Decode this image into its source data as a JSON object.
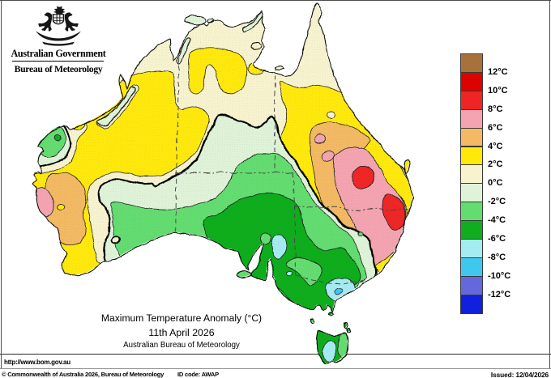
{
  "header": {
    "government": "Australian Government",
    "bureau": "Bureau of Meteorology",
    "logo_icon": "australian-coat-of-arms"
  },
  "title": {
    "line1": "Maximum Temperature Anomaly (°C)",
    "line2": "11th April 2026",
    "line3": "Australian Bureau of Meteorology"
  },
  "url": "http://www.bom.gov.au",
  "footer": {
    "copyright": "© Commonwealth of Australia 2026, Bureau of Meteorology",
    "id_code": "ID code: AWAP",
    "issued": "Issued: 12/04/2026"
  },
  "legend": {
    "labels": [
      "12°C",
      "10°C",
      "8°C",
      "6°C",
      "4°C",
      "2°C",
      "0°C",
      "-2°C",
      "-4°C",
      "-6°C",
      "-8°C",
      "-10°C",
      "-12°C"
    ],
    "colors": [
      "#a9713a",
      "#dd0202",
      "#ee2525",
      "#f4a4b0",
      "#f3b964",
      "#ffe908",
      "#f7f3cf",
      "#dff3d8",
      "#63dc70",
      "#0fad1f",
      "#a5ebf2",
      "#3fc8ee",
      "#6468dc",
      "#1020dc"
    ],
    "bands": [
      "above 12",
      "10 to 12",
      "8 to 10",
      "6 to 8",
      "4 to 6",
      "2 to 4",
      "0 to 2",
      "-2 to 0",
      "-4 to -2",
      "-6 to -4",
      "-8 to -6",
      "-10 to -8",
      "-12 to -10",
      "below -12"
    ]
  },
  "map": {
    "region_name": "Australia",
    "outline_color": "#111111",
    "border_color": "#4a4a4a",
    "zero_contour_color": "#000000",
    "sea_color": "#ffffff"
  }
}
